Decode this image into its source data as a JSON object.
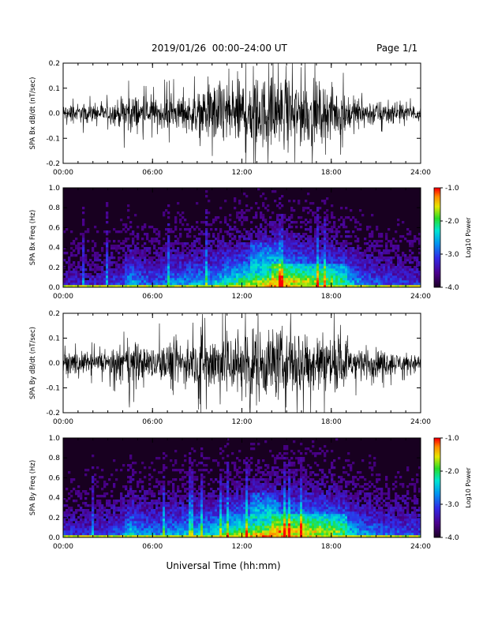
{
  "header": {
    "title": "2019/01/26  00:00–24:00 UT",
    "page": "Page 1/1"
  },
  "xlabel": "Universal Time (hh:mm)",
  "colorbar": {
    "label": "Log10 Power",
    "ticks": [
      "-1.0",
      "-2.0",
      "-3.0",
      "-4.0"
    ],
    "range": [
      -4.0,
      -1.0
    ]
  },
  "colors": {
    "spectrogram_background": "#180020",
    "trace": "#000000"
  },
  "chart_data": [
    {
      "type": "line",
      "panel": "time-series-bx",
      "ylabel": "SPA Bx dB/dt (nT/sec)",
      "xlim": [
        0,
        24
      ],
      "ylim": [
        -0.2,
        0.2
      ],
      "xticks": [
        "00:00",
        "06:00",
        "12:00",
        "18:00",
        "24:00"
      ],
      "yticks": [
        "-0.2",
        "-0.1",
        "0.0",
        "0.1",
        "0.2"
      ],
      "envelope": {
        "x": [
          0,
          1,
          2,
          3,
          4,
          4.5,
          5,
          5.5,
          6,
          7,
          8,
          9,
          10,
          11,
          12,
          13,
          14,
          15,
          16,
          17,
          18,
          19,
          20,
          21,
          22,
          23,
          24
        ],
        "amplitude": [
          0.05,
          0.06,
          0.05,
          0.06,
          0.09,
          0.14,
          0.1,
          0.08,
          0.08,
          0.1,
          0.1,
          0.12,
          0.18,
          0.22,
          0.22,
          0.22,
          0.22,
          0.21,
          0.2,
          0.18,
          0.16,
          0.12,
          0.09,
          0.08,
          0.06,
          0.05,
          0.05
        ]
      }
    },
    {
      "type": "heatmap",
      "panel": "spectrogram-bx",
      "ylabel": "SPA Bx Freq (Hz)",
      "xlim": [
        0,
        24
      ],
      "ylim": [
        0,
        1.0
      ],
      "xticks": [
        "00:00",
        "06:00",
        "12:00",
        "18:00",
        "24:00"
      ],
      "yticks": [
        "0.0",
        "0.2",
        "0.4",
        "0.6",
        "0.8",
        "1.0"
      ],
      "zlabel": "Log10 Power",
      "zlim": [
        -4.0,
        -1.0
      ],
      "activity": {
        "x": [
          0,
          2,
          4,
          4.5,
          5,
          6,
          8,
          10,
          12,
          13,
          14,
          15,
          16,
          17,
          18,
          19,
          20,
          22,
          24
        ],
        "level": [
          0.25,
          0.25,
          0.35,
          0.6,
          0.45,
          0.4,
          0.5,
          0.55,
          0.75,
          0.85,
          0.9,
          0.85,
          0.8,
          0.75,
          0.7,
          0.6,
          0.45,
          0.35,
          0.3
        ]
      }
    },
    {
      "type": "line",
      "panel": "time-series-by",
      "ylabel": "SPA By dB/dt (nT/sec)",
      "xlim": [
        0,
        24
      ],
      "ylim": [
        -0.2,
        0.2
      ],
      "xticks": [
        "00:00",
        "06:00",
        "12:00",
        "18:00",
        "24:00"
      ],
      "yticks": [
        "-0.2",
        "-0.1",
        "0.0",
        "0.1",
        "0.2"
      ],
      "envelope": {
        "x": [
          0,
          1,
          2,
          3,
          4,
          4.5,
          5,
          5.5,
          6,
          7,
          8,
          9,
          10,
          11,
          12,
          13,
          14,
          15,
          16,
          17,
          18,
          19,
          20,
          21,
          22,
          23,
          24
        ],
        "amplitude": [
          0.05,
          0.07,
          0.06,
          0.07,
          0.1,
          0.16,
          0.12,
          0.1,
          0.1,
          0.13,
          0.13,
          0.14,
          0.19,
          0.22,
          0.22,
          0.22,
          0.22,
          0.22,
          0.21,
          0.2,
          0.18,
          0.14,
          0.1,
          0.09,
          0.07,
          0.06,
          0.05
        ]
      }
    },
    {
      "type": "heatmap",
      "panel": "spectrogram-by",
      "ylabel": "SPA By Freq (Hz)",
      "xlim": [
        0,
        24
      ],
      "ylim": [
        0,
        1.0
      ],
      "xticks": [
        "00:00",
        "06:00",
        "12:00",
        "18:00",
        "24:00"
      ],
      "yticks": [
        "0.0",
        "0.2",
        "0.4",
        "0.6",
        "0.8",
        "1.0"
      ],
      "zlabel": "Log10 Power",
      "zlim": [
        -4.0,
        -1.0
      ],
      "activity": {
        "x": [
          0,
          2,
          4,
          4.5,
          5,
          6,
          8,
          10,
          12,
          13,
          14,
          15,
          16,
          17,
          18,
          19,
          20,
          22,
          24
        ],
        "level": [
          0.3,
          0.3,
          0.4,
          0.65,
          0.5,
          0.45,
          0.55,
          0.6,
          0.8,
          0.88,
          0.92,
          0.88,
          0.85,
          0.8,
          0.75,
          0.65,
          0.5,
          0.4,
          0.35
        ]
      }
    }
  ]
}
